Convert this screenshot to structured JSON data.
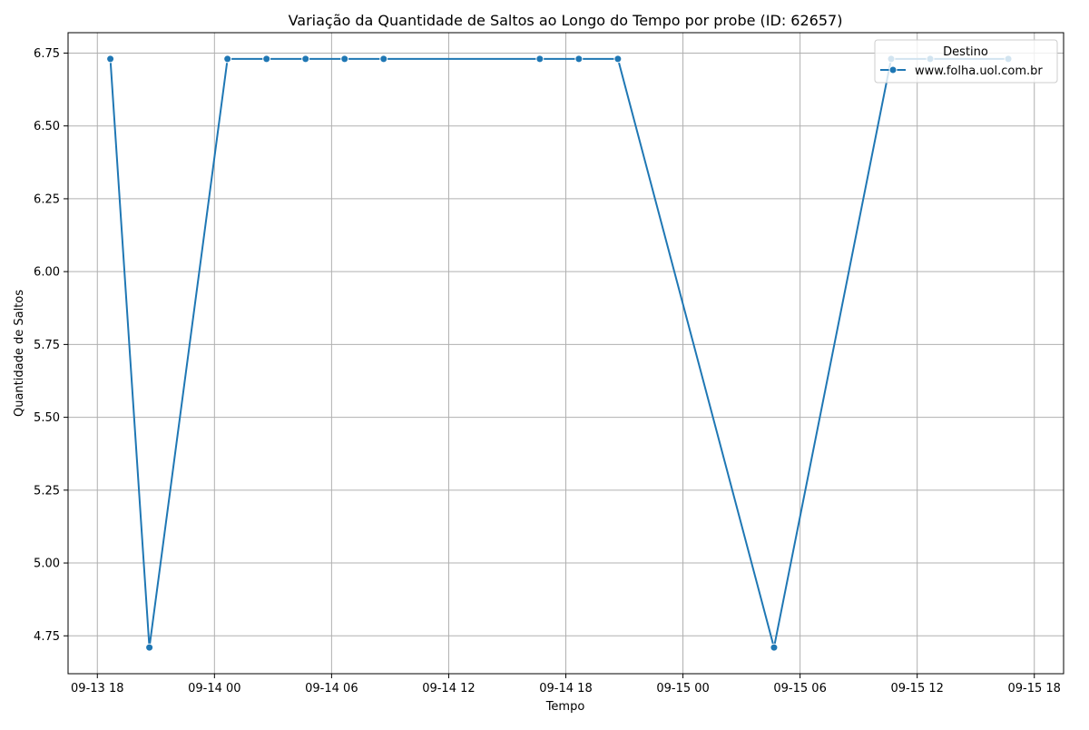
{
  "chart_data": {
    "type": "line",
    "title": "Variação da Quantidade de Saltos ao Longo do Tempo por probe (ID: 62657)",
    "xlabel": "Tempo",
    "ylabel": "Quantidade de Saltos",
    "grid": true,
    "legend": {
      "title": "Destino",
      "placement": "top-right"
    },
    "x_ticks": [
      "09-13 18",
      "09-14 00",
      "09-14 06",
      "09-14 12",
      "09-14 18",
      "09-15 00",
      "09-15 06",
      "09-15 12",
      "09-15 18"
    ],
    "x_tick_values": [
      "2023-09-13T18:00",
      "2023-09-14T00:00",
      "2023-09-14T06:00",
      "2023-09-14T12:00",
      "2023-09-14T18:00",
      "2023-09-15T00:00",
      "2023-09-15T06:00",
      "2023-09-15T12:00",
      "2023-09-15T18:00"
    ],
    "xlim": [
      "2023-09-13T16:30",
      "2023-09-15T19:30"
    ],
    "y_ticks": [
      "4.75",
      "5.00",
      "5.25",
      "5.50",
      "5.75",
      "6.00",
      "6.25",
      "6.50",
      "6.75"
    ],
    "ylim": [
      4.62,
      6.82
    ],
    "series": [
      {
        "name": "www.folha.uol.com.br",
        "color": "#1f77b4",
        "marker": "circle",
        "x": [
          "2023-09-13T18:40",
          "2023-09-13T20:40",
          "2023-09-14T00:40",
          "2023-09-14T02:40",
          "2023-09-14T04:40",
          "2023-09-14T06:40",
          "2023-09-14T08:40",
          "2023-09-14T16:40",
          "2023-09-14T18:40",
          "2023-09-14T20:40",
          "2023-09-15T04:40",
          "2023-09-15T10:40",
          "2023-09-15T12:40",
          "2023-09-15T16:40"
        ],
        "y": [
          6.73,
          4.71,
          6.73,
          6.73,
          6.73,
          6.73,
          6.73,
          6.73,
          6.73,
          6.73,
          4.71,
          6.73,
          6.73,
          6.73
        ]
      }
    ]
  }
}
